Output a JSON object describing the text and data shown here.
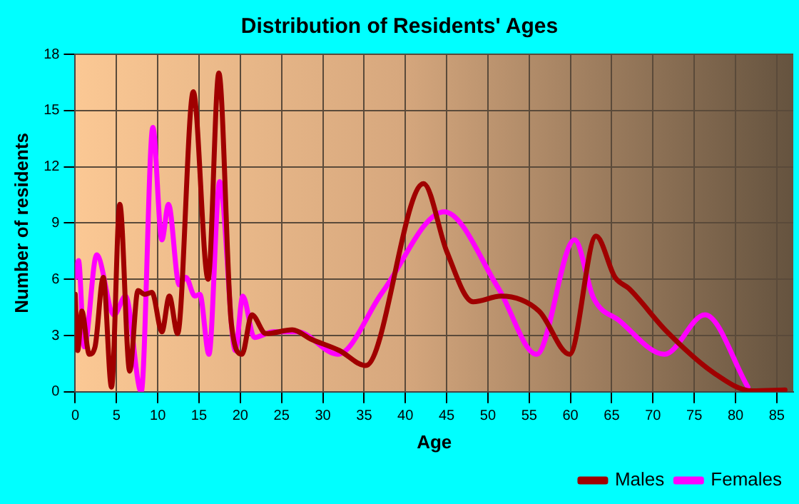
{
  "chart_data": {
    "type": "line",
    "title": "Distribution of Residents' Ages",
    "xlabel": "Age",
    "ylabel": "Number of residents",
    "xlim": [
      0,
      87
    ],
    "xticks": [
      0,
      5,
      10,
      15,
      20,
      25,
      30,
      35,
      40,
      45,
      50,
      55,
      60,
      65,
      70,
      75,
      80,
      85
    ],
    "ylim": [
      0,
      18
    ],
    "yticks": [
      0,
      3,
      6,
      9,
      12,
      15,
      18
    ],
    "grid": true,
    "legend": "bottom right",
    "marker": "none",
    "line_style": "solid",
    "series": [
      {
        "name": "Males",
        "color": "#a00000",
        "x": [
          0,
          0.3,
          0.8,
          1.7,
          2.4,
          3.4,
          4.4,
          5.4,
          6.6,
          7.6,
          8.4,
          9.3,
          10.5,
          11.4,
          12.4,
          14.3,
          16.1,
          17.4,
          18.9,
          20.2,
          21.4,
          23.1,
          26.3,
          28.6,
          32.0,
          35.2,
          42.2,
          45.0,
          48.2,
          51.6,
          56.2,
          59.9,
          63.1,
          65.4,
          67.1,
          71.7,
          77.4,
          82.0,
          86
        ],
        "values": [
          5.2,
          2.2,
          4.3,
          2.0,
          2.4,
          6.1,
          0.25,
          10.0,
          1.1,
          5.4,
          5.2,
          5.3,
          3.2,
          5.1,
          3.1,
          16.0,
          6.0,
          17.0,
          3.7,
          2.0,
          4.1,
          3.1,
          3.3,
          2.8,
          2.2,
          1.4,
          11.1,
          7.5,
          4.8,
          5.1,
          4.3,
          2.0,
          8.3,
          6.1,
          5.5,
          3.2,
          1.0,
          0.05,
          0.1
        ]
      },
      {
        "name": "Females",
        "color": "#ff00ff",
        "x": [
          0,
          0.4,
          1.1,
          2.6,
          4.7,
          6.1,
          8.0,
          9.4,
          10.5,
          11.3,
          12.6,
          13.4,
          14.5,
          15.1,
          16.2,
          17.5,
          19.4,
          20.3,
          21.7,
          24.0,
          26.9,
          31.8,
          37.2,
          44.7,
          51.3,
          55.9,
          60.5,
          62.8,
          65.9,
          71.4,
          76.3,
          81.5
        ],
        "values": [
          6.1,
          7.0,
          2.4,
          7.3,
          4.1,
          5.1,
          0,
          14.1,
          8.1,
          10.0,
          5.7,
          6.1,
          5.1,
          5.2,
          2.0,
          11.2,
          2.2,
          5.1,
          2.9,
          3.2,
          3.2,
          2.0,
          5.3,
          9.6,
          5.5,
          2.0,
          8.1,
          5.0,
          3.8,
          2.0,
          4.1,
          0.25
        ]
      }
    ]
  }
}
